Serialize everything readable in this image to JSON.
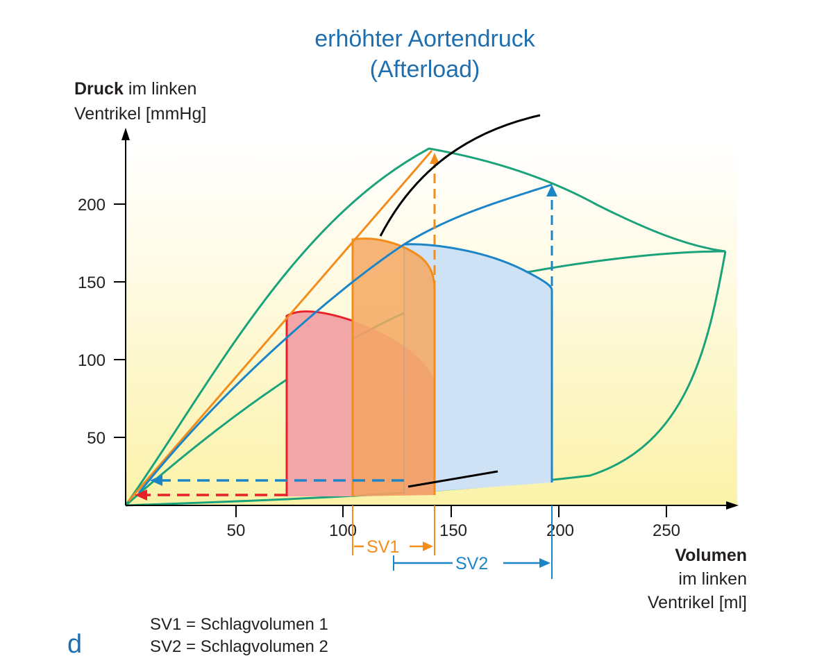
{
  "title": {
    "line1": "erhöhter Aortendruck",
    "line2": "(Afterload)"
  },
  "y_axis": {
    "label_bold": "Druck",
    "label_rest": " im linken",
    "label_line2": "Ventrikel [mmHg]",
    "ticks": [
      "50",
      "100",
      "150",
      "200"
    ]
  },
  "x_axis": {
    "label_bold": "Volumen",
    "label_line2": "im linken",
    "label_line3": "Ventrikel [ml]",
    "ticks": [
      "50",
      "100",
      "150",
      "200",
      "250"
    ]
  },
  "stroke_volumes": {
    "sv1": "SV1",
    "sv2": "SV2"
  },
  "legend": {
    "line1": "SV1 = Schlagvolumen 1",
    "line2": "SV2 = Schlagvolumen 2"
  },
  "panel_letter": "d",
  "colors": {
    "title": "#1f6fb0",
    "envelope": "#1aa37a",
    "red_loop": "#e8202a",
    "orange_loop": "#f28c1b",
    "blue_loop": "#1c85c8",
    "background_gradient_top": "#ffffff",
    "background_gradient_bottom": "#fbf2a8"
  }
}
